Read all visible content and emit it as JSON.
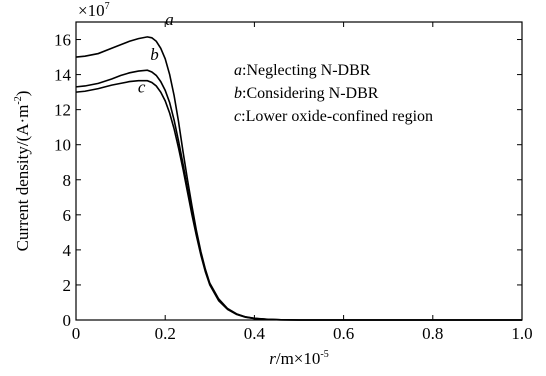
{
  "chart_data": {
    "type": "line",
    "xlabel": {
      "italic": "r",
      "rest": "/m×10",
      "sup": "-5"
    },
    "ylabel": {
      "main": "Current density/(A·m",
      "sup": "-2",
      "close": ")"
    },
    "y_exponent": {
      "base": "×10",
      "sup": "7"
    },
    "xlim": [
      0,
      1.0
    ],
    "ylim": [
      0,
      17
    ],
    "x_ticks": [
      0,
      0.2,
      0.4,
      0.6,
      0.8,
      1.0
    ],
    "x_tick_labels": [
      "0",
      "0.2",
      "0.4",
      "0.6",
      "0.8",
      "1.0"
    ],
    "y_ticks": [
      0,
      2,
      4,
      6,
      8,
      10,
      12,
      14,
      16
    ],
    "y_tick_labels": [
      "0",
      "2",
      "4",
      "6",
      "8",
      "10",
      "12",
      "14",
      "16"
    ],
    "grid": false,
    "legend_position": "top-right",
    "legend": [
      {
        "letter": "a",
        "sep": ":",
        "text": "Neglecting N-DBR"
      },
      {
        "letter": "b",
        "sep": ":",
        "text": "Considering N-DBR"
      },
      {
        "letter": "c",
        "sep": ":",
        "text": "Lower oxide-confined region"
      }
    ],
    "series": [
      {
        "label": "a",
        "x": [
          0,
          0.02,
          0.05,
          0.08,
          0.1,
          0.12,
          0.14,
          0.16,
          0.17,
          0.18,
          0.19,
          0.2,
          0.21,
          0.22,
          0.23,
          0.24,
          0.25,
          0.26,
          0.27,
          0.28,
          0.29,
          0.3,
          0.32,
          0.34,
          0.36,
          0.38,
          0.4,
          0.43,
          0.46,
          0.5,
          0.6,
          0.7,
          0.8,
          0.9,
          1.0
        ],
        "y": [
          15.0,
          15.05,
          15.2,
          15.5,
          15.7,
          15.9,
          16.05,
          16.15,
          16.1,
          15.9,
          15.5,
          14.9,
          14.0,
          12.8,
          11.3,
          9.6,
          8.0,
          6.5,
          5.1,
          3.9,
          2.9,
          2.1,
          1.2,
          0.65,
          0.35,
          0.18,
          0.1,
          0.04,
          0.015,
          0.0,
          0.0,
          0.0,
          0.0,
          0.0,
          0.0
        ]
      },
      {
        "label": "b",
        "x": [
          0,
          0.02,
          0.05,
          0.08,
          0.1,
          0.12,
          0.14,
          0.16,
          0.17,
          0.18,
          0.19,
          0.2,
          0.21,
          0.22,
          0.23,
          0.24,
          0.25,
          0.26,
          0.27,
          0.28,
          0.29,
          0.3,
          0.32,
          0.34,
          0.36,
          0.38,
          0.4,
          0.43,
          0.46,
          0.5,
          0.6,
          0.7,
          0.8,
          0.9,
          1.0
        ],
        "y": [
          13.3,
          13.35,
          13.5,
          13.75,
          13.95,
          14.1,
          14.2,
          14.25,
          14.15,
          13.95,
          13.6,
          13.1,
          12.4,
          11.4,
          10.2,
          8.9,
          7.5,
          6.2,
          4.9,
          3.8,
          2.85,
          2.05,
          1.15,
          0.62,
          0.33,
          0.17,
          0.09,
          0.035,
          0.012,
          0.0,
          0.0,
          0.0,
          0.0,
          0.0,
          0.0
        ]
      },
      {
        "label": "c",
        "x": [
          0,
          0.02,
          0.05,
          0.08,
          0.1,
          0.12,
          0.14,
          0.16,
          0.17,
          0.18,
          0.19,
          0.2,
          0.21,
          0.22,
          0.23,
          0.24,
          0.25,
          0.26,
          0.27,
          0.28,
          0.29,
          0.3,
          0.32,
          0.34,
          0.36,
          0.38,
          0.4,
          0.43,
          0.46,
          0.5,
          0.6,
          0.7,
          0.8,
          0.9,
          1.0
        ],
        "y": [
          13.0,
          13.05,
          13.2,
          13.4,
          13.5,
          13.6,
          13.65,
          13.65,
          13.55,
          13.35,
          13.0,
          12.5,
          11.8,
          10.9,
          9.8,
          8.6,
          7.3,
          6.0,
          4.8,
          3.7,
          2.75,
          2.0,
          1.1,
          0.6,
          0.32,
          0.16,
          0.08,
          0.03,
          0.01,
          0.0,
          0.0,
          0.0,
          0.0,
          0.0,
          0.0
        ]
      }
    ]
  }
}
